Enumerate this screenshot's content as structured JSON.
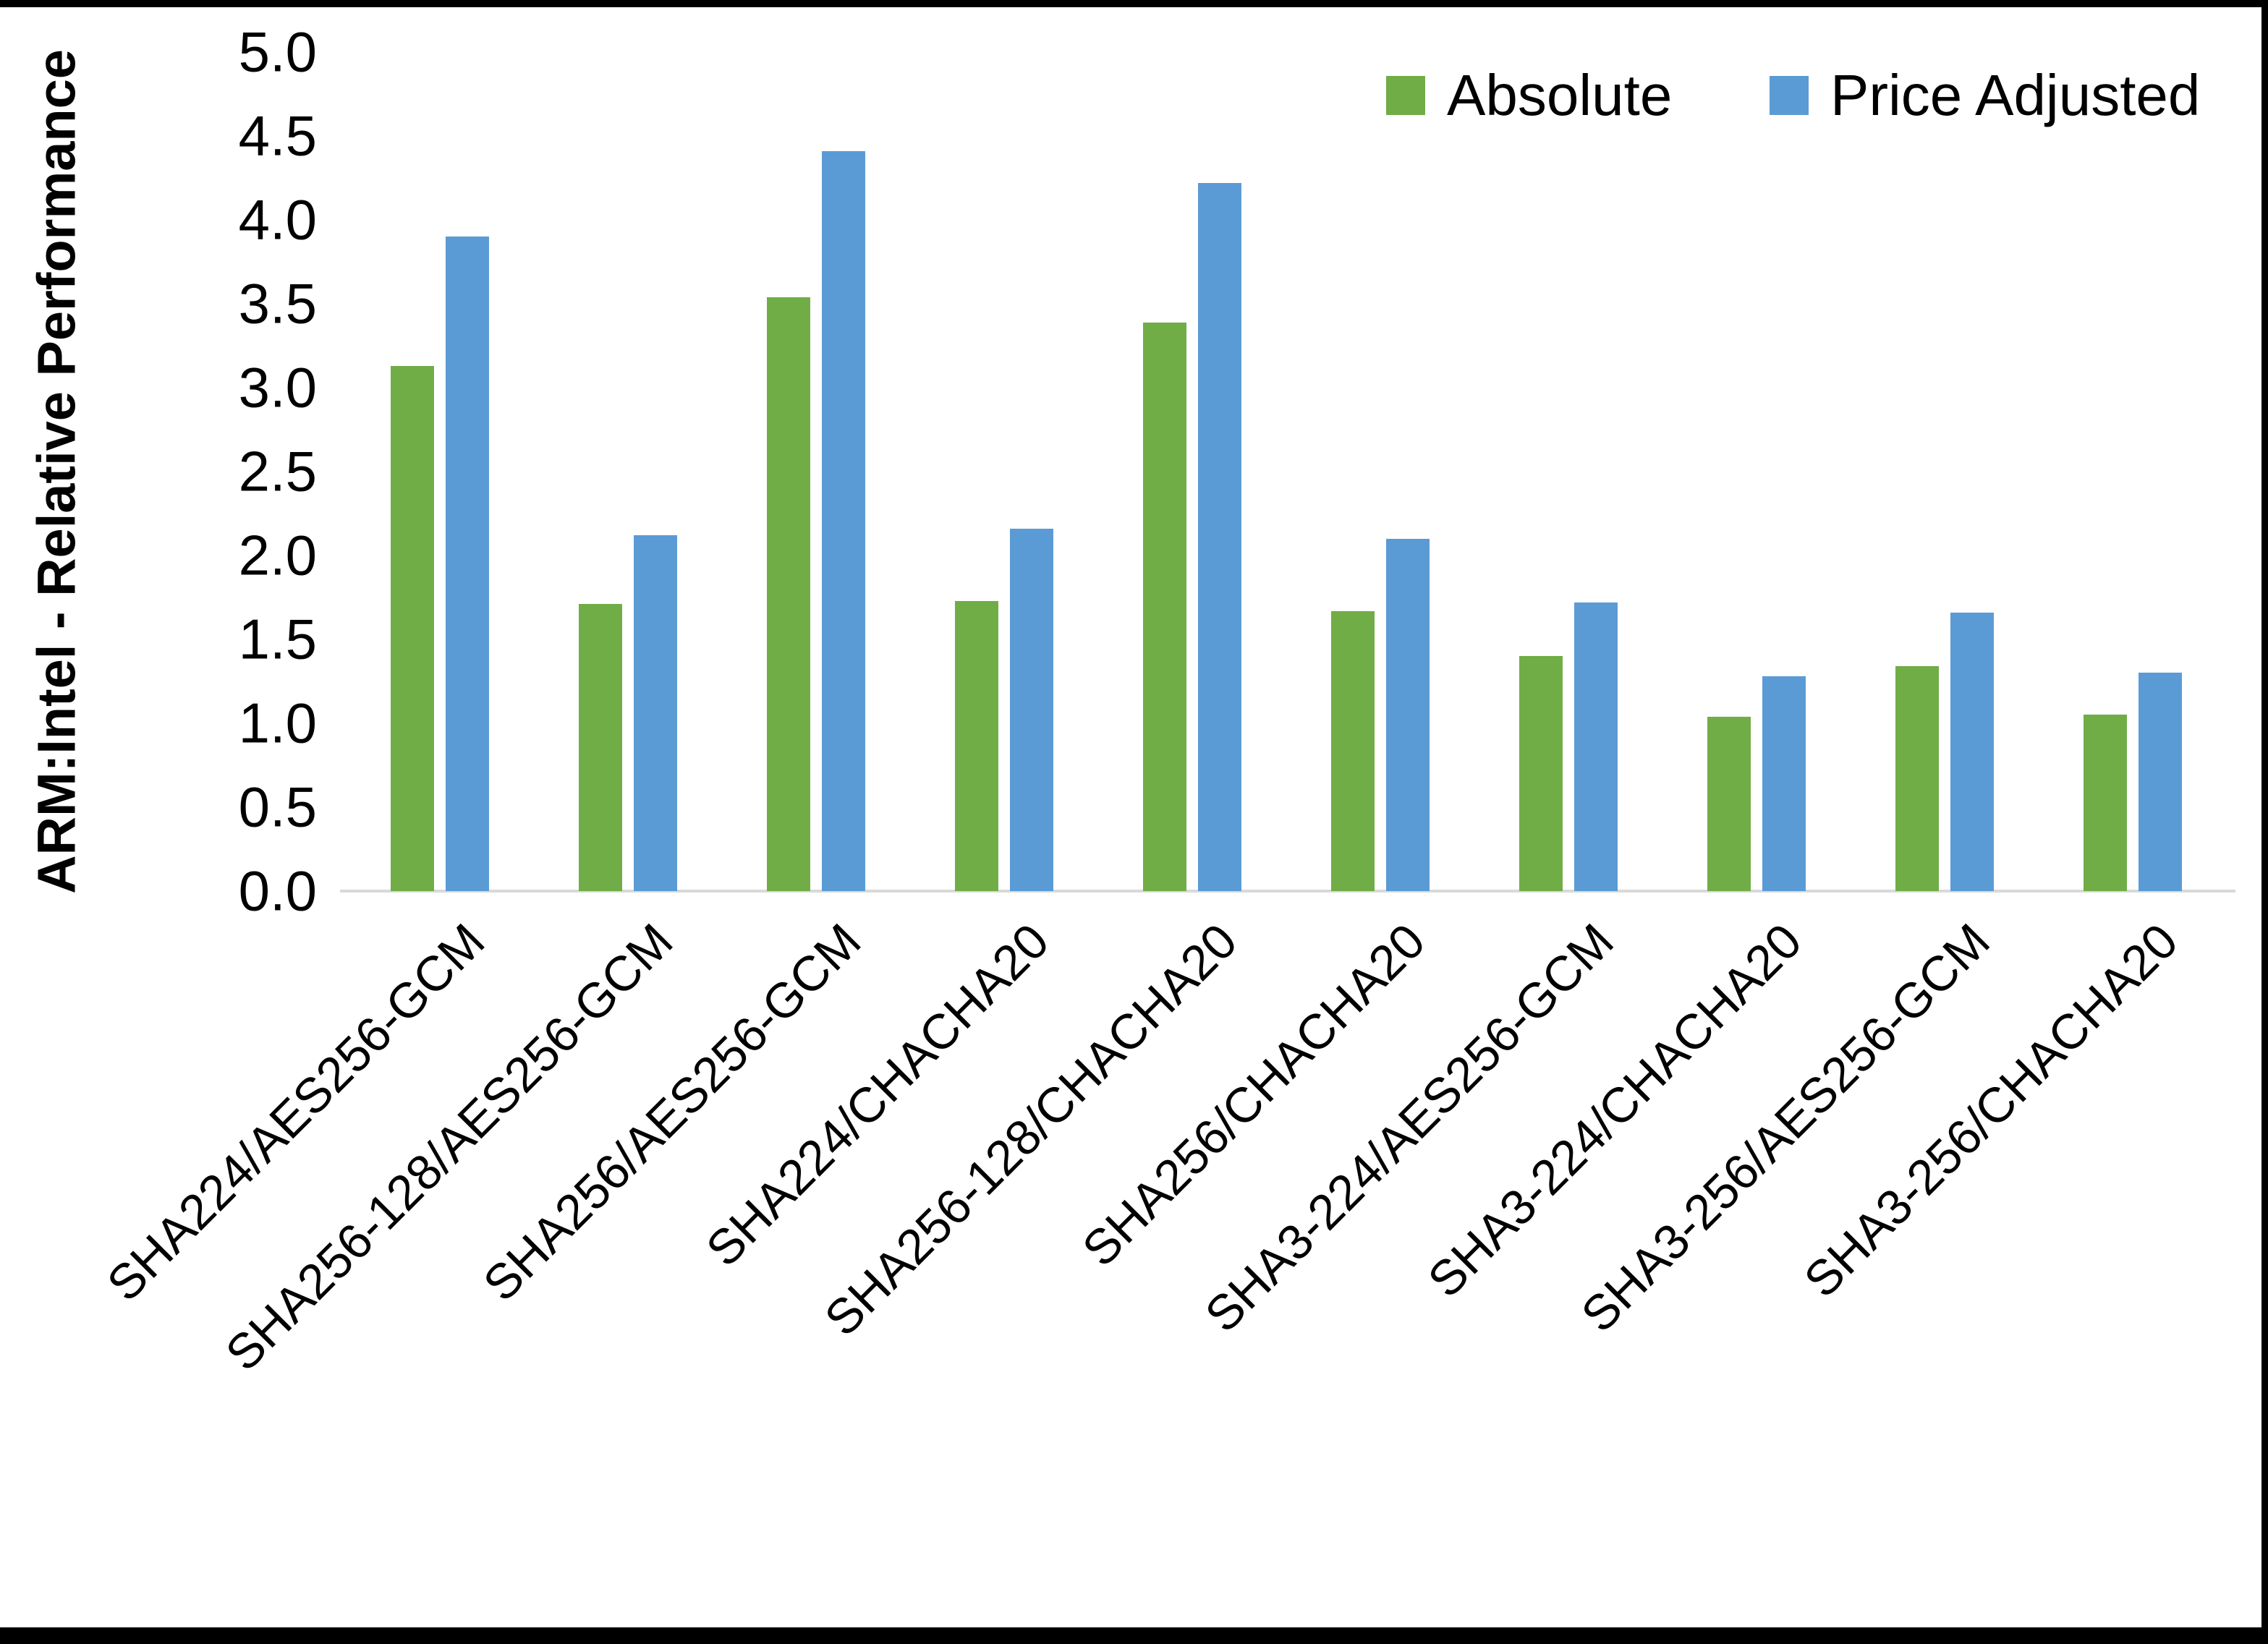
{
  "chart_data": {
    "type": "bar",
    "title": "",
    "xlabel": "",
    "ylabel": "ARM:Intel - Relative Performance",
    "ylim": [
      0.0,
      5.0
    ],
    "ytick_step": 0.5,
    "ytick_labels": [
      "0.0",
      "0.5",
      "1.0",
      "1.5",
      "2.0",
      "2.5",
      "3.0",
      "3.5",
      "4.0",
      "4.5",
      "5.0"
    ],
    "grid": false,
    "legend_position": "top-right",
    "categories": [
      "SHA224/AES256-GCM",
      "SHA256-128/AES256-GCM",
      "SHA256/AES256-GCM",
      "SHA224/CHACHA20",
      "SHA256-128/CHACHA20",
      "SHA256/CHACHA20",
      "SHA3-224/AES256-GCM",
      "SHA3-224/CHACHA20",
      "SHA3-256/AES256-GCM",
      "SHA3-256/CHACHA20"
    ],
    "series": [
      {
        "name": "Absolute",
        "color": "#70AD47",
        "values": [
          3.13,
          1.71,
          3.54,
          1.73,
          3.39,
          1.67,
          1.4,
          1.04,
          1.34,
          1.05
        ]
      },
      {
        "name": "Price Adjusted",
        "color": "#5B9BD5",
        "values": [
          3.9,
          2.12,
          4.41,
          2.16,
          4.22,
          2.1,
          1.72,
          1.28,
          1.66,
          1.3
        ]
      }
    ],
    "axis_line_color": "#d9d9d9",
    "text_color": "#000000"
  }
}
